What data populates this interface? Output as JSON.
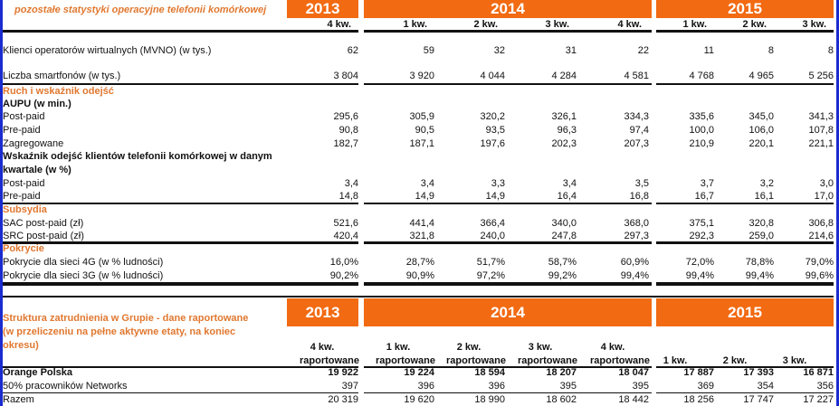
{
  "table1": {
    "title": "pozostałe statystyki operacyjne telefonii komórkowej",
    "years": [
      "2013",
      "2014",
      "2015"
    ],
    "quarters": [
      "4 kw.",
      "1 kw.",
      "2 kw.",
      "3 kw.",
      "4 kw.",
      "1 kw.",
      "2 kw.",
      "3 kw."
    ],
    "rows": [
      {
        "label": "Klienci operatorów wirtualnych (MVNO) (w tys.)",
        "values": [
          "62",
          "59",
          "32",
          "31",
          "22",
          "11",
          "8",
          "8"
        ]
      },
      {
        "label": "Liczba smartfonów (w tys.)",
        "values": [
          "3 804",
          "3 920",
          "4 044",
          "4 284",
          "4 581",
          "4 768",
          "4 965",
          "5 256"
        ]
      },
      {
        "label": "Ruch i wskaźnik odejść",
        "section": true
      },
      {
        "label": "AUPU (w min.)",
        "bold": true
      },
      {
        "label": "Post-paid",
        "values": [
          "295,6",
          "305,9",
          "320,2",
          "326,1",
          "334,3",
          "335,6",
          "345,0",
          "341,3"
        ]
      },
      {
        "label": "Pre-paid",
        "values": [
          "90,8",
          "90,5",
          "93,5",
          "96,3",
          "97,4",
          "100,0",
          "106,0",
          "107,8"
        ]
      },
      {
        "label": "Zagregowane",
        "values": [
          "182,7",
          "187,1",
          "197,6",
          "202,3",
          "207,3",
          "210,9",
          "220,1",
          "221,1"
        ]
      },
      {
        "label": "Wskaźnik odejść klientów telefonii komórkowej w danym",
        "bold": true
      },
      {
        "label": "kwartale (w %)",
        "bold": true
      },
      {
        "label": "Post-paid",
        "values": [
          "3,4",
          "3,4",
          "3,3",
          "3,4",
          "3,5",
          "3,7",
          "3,2",
          "3,0"
        ]
      },
      {
        "label": "Pre-paid",
        "values": [
          "14,8",
          "14,9",
          "14,9",
          "16,4",
          "16,8",
          "16,7",
          "16,1",
          "17,0"
        ]
      },
      {
        "label": "Subsydia",
        "section": true
      },
      {
        "label": "SAC post-paid (zł)",
        "values": [
          "521,6",
          "441,4",
          "366,4",
          "340,0",
          "368,0",
          "375,1",
          "320,8",
          "306,8"
        ]
      },
      {
        "label": "SRC post-paid (zł)",
        "values": [
          "420,4",
          "321,8",
          "240,0",
          "247,8",
          "297,3",
          "292,3",
          "259,0",
          "214,6"
        ]
      },
      {
        "label": "Pokrycie",
        "section": true
      },
      {
        "label": "Pokrycie dla sieci 4G (w % ludności)",
        "values": [
          "16,0%",
          "28,7%",
          "51,7%",
          "58,7%",
          "60,9%",
          "72,0%",
          "78,8%",
          "79,0%"
        ]
      },
      {
        "label": "Pokrycie dla sieci 3G (w % ludności)",
        "values": [
          "90,2%",
          "90,9%",
          "97,2%",
          "99,2%",
          "99,4%",
          "99,4%",
          "99,4%",
          "99,6%"
        ]
      }
    ]
  },
  "table2": {
    "title_lines": [
      "Struktura zatrudnienia w Grupie - dane raportowane",
      "(w przeliczeniu na pełne aktywne etaty, na koniec",
      "okresu)"
    ],
    "years": [
      "2013",
      "2014",
      "2015"
    ],
    "quarters": [
      "4 kw.",
      "1 kw.",
      "2 kw.",
      "3 kw.",
      "4 kw.",
      "1 kw.",
      "2 kw.",
      "3 kw."
    ],
    "subs": [
      "raportowane",
      "raportowane",
      "raportowane",
      "raportowane",
      "raportowane",
      "",
      "",
      ""
    ],
    "rows": [
      {
        "label": "Orange Polska",
        "bold": true,
        "values": [
          "19 922",
          "19 224",
          "18 594",
          "18 207",
          "18 047",
          "17 887",
          "17 393",
          "16 871"
        ]
      },
      {
        "label": "50% pracowników  Networks",
        "values": [
          "397",
          "396",
          "396",
          "395",
          "395",
          "369",
          "354",
          "356"
        ]
      },
      {
        "label": "Razem",
        "values": [
          "20 319",
          "19 620",
          "18 990",
          "18 602",
          "18 442",
          "18 256",
          "17 747",
          "17 227"
        ]
      }
    ]
  }
}
